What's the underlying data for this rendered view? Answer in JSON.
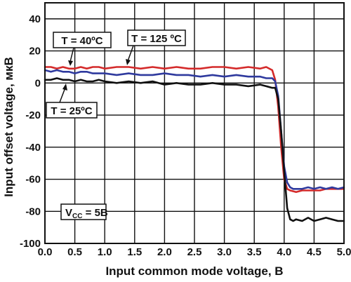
{
  "chart_data": {
    "type": "line",
    "xlabel": "Input common mode voltage, B",
    "ylabel": "Input offset voltage, мкВ",
    "xlim": [
      0,
      5
    ],
    "ylim": [
      -100,
      50
    ],
    "xticks": [
      "0.0",
      "0.5",
      "1.0",
      "1.5",
      "2.0",
      "2.5",
      "3.0",
      "3.5",
      "4.0",
      "4.5",
      "5.0"
    ],
    "yticks": [
      "40",
      "20",
      "0",
      "-20",
      "-40",
      "-60",
      "-80",
      "-100"
    ],
    "grid": true,
    "series": [
      {
        "name": "T = 125 ºC",
        "color": "#d42a2a",
        "x": [
          0.0,
          0.1,
          0.2,
          0.3,
          0.4,
          0.5,
          0.6,
          0.7,
          0.8,
          0.9,
          1.0,
          1.2,
          1.4,
          1.6,
          1.8,
          2.0,
          2.2,
          2.4,
          2.6,
          2.8,
          3.0,
          3.2,
          3.4,
          3.6,
          3.7,
          3.8,
          3.85,
          3.9,
          3.95,
          4.0,
          4.05,
          4.1,
          4.2,
          4.3,
          4.4,
          4.5,
          4.6,
          4.7,
          4.8,
          4.9,
          5.0
        ],
        "y": [
          10,
          10,
          9,
          10,
          9,
          9,
          10,
          9,
          10,
          10,
          9,
          10,
          10,
          9,
          10,
          9,
          10,
          9,
          9,
          10,
          10,
          9,
          10,
          9,
          10,
          8,
          2,
          -15,
          -40,
          -60,
          -66,
          -67,
          -68,
          -67,
          -67,
          -67,
          -67,
          -66,
          -66,
          -66,
          -66
        ]
      },
      {
        "name": "T = 40 ºC",
        "color": "#2f3a9e",
        "x": [
          0.0,
          0.1,
          0.2,
          0.3,
          0.4,
          0.5,
          0.6,
          0.7,
          0.8,
          0.9,
          1.0,
          1.2,
          1.4,
          1.6,
          1.8,
          2.0,
          2.2,
          2.4,
          2.6,
          2.8,
          3.0,
          3.2,
          3.4,
          3.6,
          3.7,
          3.8,
          3.85,
          3.9,
          3.95,
          4.0,
          4.05,
          4.1,
          4.15,
          4.2,
          4.3,
          4.4,
          4.5,
          4.6,
          4.7,
          4.8,
          4.9,
          5.0
        ],
        "y": [
          8,
          7,
          8,
          7,
          7,
          6,
          7,
          7,
          6,
          6,
          6,
          5,
          6,
          5,
          5,
          6,
          5,
          5,
          4,
          5,
          4,
          5,
          4,
          4,
          3,
          3,
          1,
          -8,
          -30,
          -52,
          -62,
          -65,
          -66,
          -66,
          -66,
          -65,
          -66,
          -65,
          -66,
          -65,
          -66,
          -65
        ]
      },
      {
        "name": "T = 25ºC",
        "color": "#111111",
        "x": [
          0.0,
          0.1,
          0.2,
          0.3,
          0.4,
          0.5,
          0.6,
          0.7,
          0.8,
          0.9,
          1.0,
          1.2,
          1.4,
          1.6,
          1.8,
          2.0,
          2.2,
          2.4,
          2.6,
          2.8,
          3.0,
          3.2,
          3.4,
          3.6,
          3.7,
          3.8,
          3.85,
          3.9,
          3.95,
          4.0,
          4.05,
          4.1,
          4.15,
          4.2,
          4.3,
          4.4,
          4.5,
          4.6,
          4.7,
          4.8,
          4.9,
          5.0
        ],
        "y": [
          2,
          2,
          3,
          2,
          2,
          1,
          2,
          1,
          1,
          2,
          1,
          0,
          1,
          0,
          1,
          -1,
          0,
          -1,
          -1,
          0,
          -1,
          -1,
          -2,
          -1,
          -2,
          -3,
          -3,
          -10,
          -30,
          -55,
          -78,
          -85,
          -86,
          -85,
          -86,
          -84,
          -86,
          -85,
          -84,
          -85,
          -86,
          -86
        ]
      }
    ],
    "annotations": [
      {
        "text": "T = 40ºC"
      },
      {
        "text": "T = 125 ºC"
      },
      {
        "text": "T = 25ºC"
      },
      {
        "main": "V",
        "sub": "CC",
        "rest": " = 5B"
      }
    ]
  }
}
